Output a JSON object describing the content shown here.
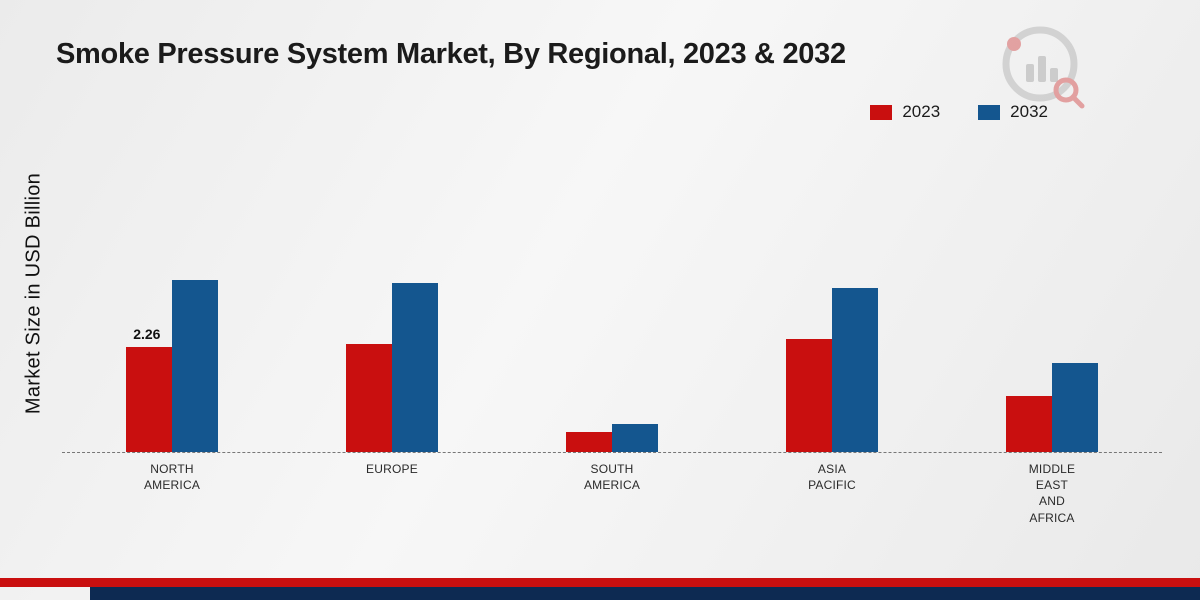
{
  "title": "Smoke Pressure System Market, By Regional, 2023 & 2032",
  "y_axis_label": "Market Size in USD Billion",
  "colors": {
    "series_2023": "#c90f0f",
    "series_2032": "#14568f",
    "strip_red": "#c90f0f",
    "strip_navy": "#0d2a52",
    "baseline": "#777777"
  },
  "legend": {
    "position": "top-right"
  },
  "chart_data": {
    "type": "bar",
    "title": "Smoke Pressure System Market, By Regional, 2023 & 2032",
    "xlabel": "",
    "ylabel": "Market Size in USD Billion",
    "categories": [
      "NORTH\nAMERICA",
      "EUROPE",
      "SOUTH\nAMERICA",
      "ASIA\nPACIFIC",
      "MIDDLE\nEAST\nAND\nAFRICA"
    ],
    "series": [
      {
        "name": "2023",
        "color": "#c90f0f",
        "values": [
          2.26,
          2.32,
          0.42,
          2.43,
          1.21
        ]
      },
      {
        "name": "2032",
        "color": "#14568f",
        "values": [
          3.7,
          3.63,
          0.6,
          3.52,
          1.92
        ]
      }
    ],
    "annotations": [
      {
        "series": "2023",
        "category_index": 0,
        "text": "2.26"
      }
    ],
    "ylim": [
      0,
      4.2
    ],
    "grid": false,
    "baseline_style": "dashed",
    "legend_position": "top-right"
  }
}
